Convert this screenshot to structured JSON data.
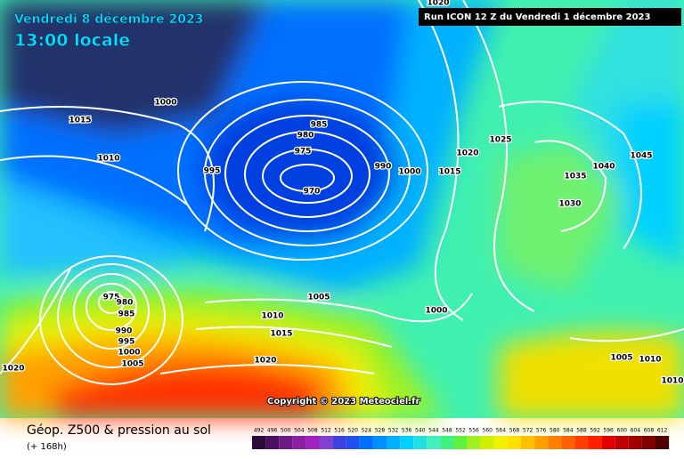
{
  "header": {
    "date": "Vendredi 8 décembre 2023",
    "time": "13:00 locale",
    "run": "Run ICON 12 Z du Vendredi 1 décembre 2023"
  },
  "isobar_labels": [
    1015,
    1010,
    1000,
    995,
    985,
    980,
    975,
    970,
    990,
    1000,
    1015,
    1020,
    1025,
    1040,
    1045,
    1035,
    1030,
    975,
    980,
    985,
    990,
    995,
    1000,
    1005,
    1005,
    1010,
    1015,
    1020,
    1000,
    1005,
    1010,
    1010,
    1020,
    1020
  ],
  "copyright": "Copyright © 2023 Meteociel.fr",
  "footer": {
    "title": "Géop. Z500 & pression au sol",
    "lead": "(+ 168h)"
  },
  "colorbar": {
    "ticks": [
      492,
      496,
      500,
      504,
      508,
      512,
      516,
      520,
      524,
      528,
      532,
      536,
      540,
      544,
      548,
      552,
      556,
      560,
      564,
      568,
      572,
      576,
      580,
      584,
      588,
      592,
      596,
      600,
      604,
      608,
      612
    ],
    "colors": [
      "#2a0a3a",
      "#4a1060",
      "#6a1a80",
      "#8a20a0",
      "#a020c0",
      "#8040d0",
      "#4040e0",
      "#2050f0",
      "#0070ff",
      "#0090ff",
      "#00b0ff",
      "#00d0ff",
      "#20e0e0",
      "#40f0c0",
      "#40f080",
      "#60f040",
      "#a0f020",
      "#d0f000",
      "#f0f000",
      "#ffe000",
      "#ffc000",
      "#ffa000",
      "#ff8000",
      "#ff6000",
      "#ff4000",
      "#ff2000",
      "#e00000",
      "#c00000",
      "#a00000",
      "#800000",
      "#500000"
    ]
  }
}
